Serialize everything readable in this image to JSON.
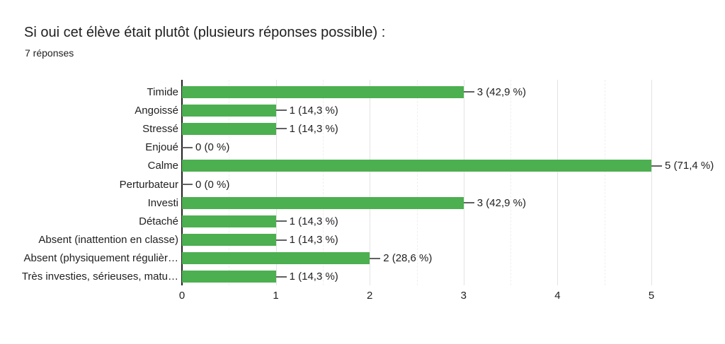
{
  "chart_data": {
    "type": "bar",
    "orientation": "horizontal",
    "title": "Si oui cet élève était plutôt (plusieurs réponses possible) :",
    "subtitle": "7 réponses",
    "categories": [
      "Timide",
      "Angoissé",
      "Stressé",
      "Enjoué",
      "Calme",
      "Perturbateur",
      "Investi",
      "Détaché",
      "Absent (inattention en classe)",
      "Absent (physiquement régulièr…",
      "Très investies, sérieuses, matu…"
    ],
    "values": [
      3,
      1,
      1,
      0,
      5,
      0,
      3,
      1,
      1,
      2,
      1
    ],
    "value_labels": [
      "3 (42,9 %)",
      "1 (14,3 %)",
      "1 (14,3 %)",
      "0 (0 %)",
      "5 (71,4 %)",
      "0 (0 %)",
      "3 (42,9 %)",
      "1 (14,3 %)",
      "1 (14,3 %)",
      "2 (28,6 %)",
      "1 (14,3 %)"
    ],
    "x_ticks": [
      "0",
      "1",
      "2",
      "3",
      "4",
      "5"
    ],
    "xlim": [
      0,
      5
    ],
    "grid": true,
    "legend": false,
    "colors": {
      "bar": "#4caf50",
      "axis_line": "#212121",
      "gridline_major": "#e3e3e3",
      "gridline_minor": "#efefef",
      "text": "#212121",
      "background": "#ffffff"
    }
  }
}
